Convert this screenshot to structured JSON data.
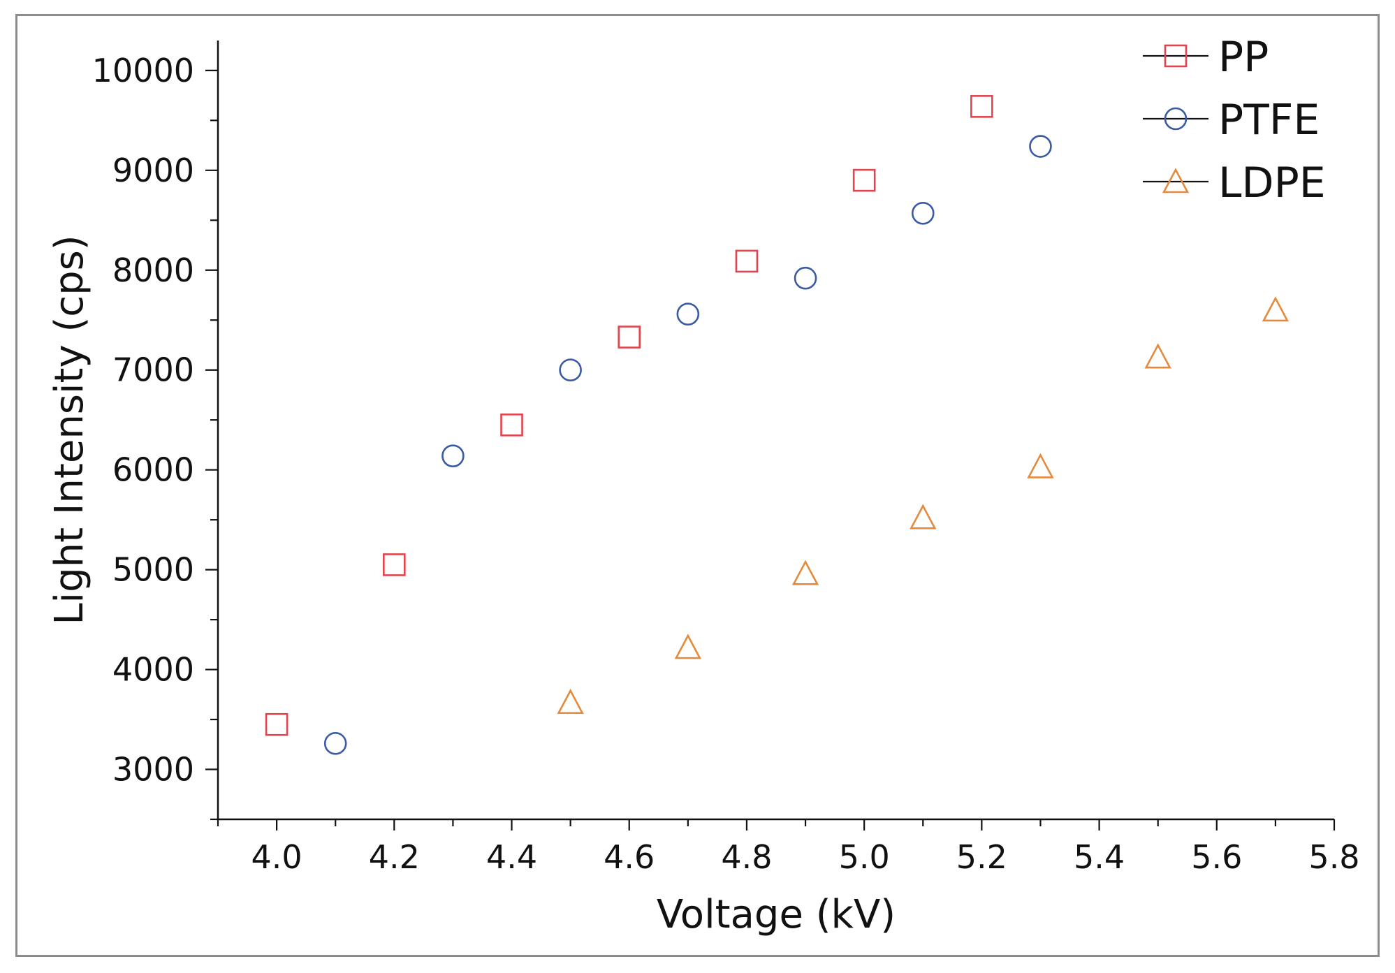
{
  "chart_data": {
    "type": "scatter",
    "title": "",
    "xlabel": "Voltage (kV)",
    "ylabel": "Light Intensity (cps)",
    "xlim": [
      3.9,
      5.8
    ],
    "ylim": [
      2500,
      10300
    ],
    "xticks": [
      4.0,
      4.2,
      4.4,
      4.6,
      4.8,
      5.0,
      5.2,
      5.4,
      5.6,
      5.8
    ],
    "xtick_labels": [
      "4.0",
      "4.2",
      "4.4",
      "4.6",
      "4.8",
      "5.0",
      "5.2",
      "5.4",
      "5.6",
      "5.8"
    ],
    "yticks": [
      3000,
      4000,
      5000,
      6000,
      7000,
      8000,
      9000,
      10000
    ],
    "ytick_labels": [
      "3000",
      "4000",
      "5000",
      "6000",
      "7000",
      "8000",
      "9000",
      "10000"
    ],
    "grid": false,
    "legend_position": "top-right",
    "series": [
      {
        "name": "PP",
        "marker": "square",
        "color": "#e0454f",
        "x": [
          4.0,
          4.2,
          4.4,
          4.6,
          4.8,
          5.0,
          5.2
        ],
        "y": [
          3450,
          5050,
          6450,
          7330,
          8090,
          8900,
          9640
        ]
      },
      {
        "name": "PTFE",
        "marker": "circle",
        "color": "#3b5aa6",
        "x": [
          4.1,
          4.3,
          4.5,
          4.7,
          4.9,
          5.1,
          5.3
        ],
        "y": [
          3260,
          6140,
          7000,
          7560,
          7920,
          8570,
          9240
        ]
      },
      {
        "name": "LDPE",
        "marker": "triangle",
        "color": "#e58a3c",
        "x": [
          4.5,
          4.7,
          4.9,
          5.1,
          5.3,
          5.5,
          5.7
        ],
        "y": [
          3670,
          4220,
          4960,
          5520,
          6030,
          7130,
          7600
        ]
      }
    ]
  }
}
